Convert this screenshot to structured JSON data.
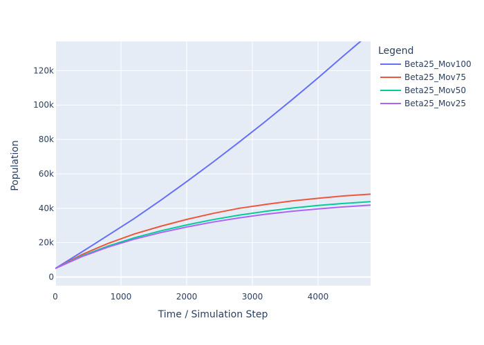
{
  "chart_data": {
    "type": "line",
    "title": "",
    "xlabel": "Time / Simulation Step",
    "ylabel": "Population",
    "xlim": [
      0,
      4800
    ],
    "ylim": [
      -5000,
      137000
    ],
    "x_ticks": [
      0,
      1000,
      2000,
      3000,
      4000
    ],
    "x_tick_labels": [
      "0",
      "1000",
      "2000",
      "3000",
      "4000"
    ],
    "y_ticks": [
      0,
      20000,
      40000,
      60000,
      80000,
      100000,
      120000
    ],
    "y_tick_labels": [
      "0",
      "20k",
      "40k",
      "60k",
      "80k",
      "100k",
      "120k"
    ],
    "grid": true,
    "legend": {
      "title": "Legend",
      "placement": "right"
    },
    "background_color": "#e5ecf6",
    "x": [
      0,
      400,
      800,
      1200,
      1600,
      2000,
      2400,
      2800,
      3200,
      3600,
      4000,
      4400,
      4800
    ],
    "series": [
      {
        "name": "Beta25_Mov100",
        "color": "#636efa",
        "values": [
          5000,
          14500,
          24200,
          34000,
          44500,
          55500,
          66800,
          78500,
          90500,
          103000,
          115800,
          129000,
          142000
        ]
      },
      {
        "name": "Beta25_Mov75",
        "color": "#ef553b",
        "values": [
          5000,
          13000,
          19500,
          25000,
          29500,
          33500,
          37000,
          40000,
          42200,
          44200,
          45800,
          47200,
          48200
        ]
      },
      {
        "name": "Beta25_Mov50",
        "color": "#00cc96",
        "values": [
          5000,
          12200,
          18000,
          22800,
          26800,
          30300,
          33400,
          36000,
          38200,
          40100,
          41600,
          42800,
          43800
        ]
      },
      {
        "name": "Beta25_Mov25",
        "color": "#ab63fa",
        "values": [
          5000,
          11800,
          17400,
          22000,
          25800,
          29100,
          32000,
          34400,
          36500,
          38200,
          39600,
          40800,
          41800
        ]
      }
    ]
  }
}
